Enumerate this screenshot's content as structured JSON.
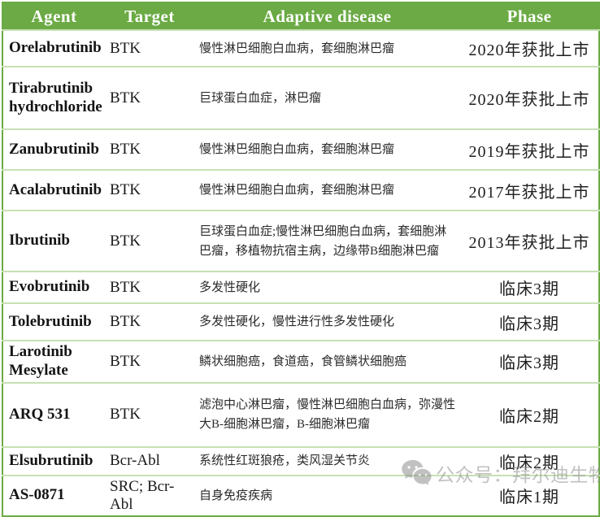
{
  "table": {
    "headers": [
      "Agent",
      "Target",
      "Adaptive disease",
      "Phase"
    ],
    "rows": [
      {
        "agent": "Orelabrutinib",
        "target": "BTK",
        "disease": "慢性淋巴细胞白血病，套细胞淋巴瘤",
        "phase": "2020年获批上市"
      },
      {
        "agent": "Tirabrutinib hydrochloride",
        "target": "BTK",
        "disease": "巨球蛋白血症，淋巴瘤",
        "phase": "2020年获批上市"
      },
      {
        "agent": "Zanubrutinib",
        "target": "BTK",
        "disease": "慢性淋巴细胞白血病，套细胞淋巴瘤",
        "phase": "2019年获批上市"
      },
      {
        "agent": "Acalabrutinib",
        "target": "BTK",
        "disease": "慢性淋巴细胞白血病，套细胞淋巴瘤",
        "phase": "2017年获批上市"
      },
      {
        "agent": "Ibrutinib",
        "target": "BTK",
        "disease": "巨球蛋白血症;慢性淋巴细胞白血病，套细胞淋巴瘤，移植物抗宿主病，边缘带B细胞淋巴瘤",
        "phase": "2013年获批上市"
      },
      {
        "agent": "Evobrutinib",
        "target": "BTK",
        "disease": "多发性硬化",
        "phase": "临床3期"
      },
      {
        "agent": "Tolebrutinib",
        "target": "BTK",
        "disease": "多发性硬化，慢性进行性多发性硬化",
        "phase": "临床3期"
      },
      {
        "agent": "Larotinib Mesylate",
        "target": "BTK",
        "disease": "鳞状细胞癌，食道癌，食管鳞状细胞癌",
        "phase": "临床3期"
      },
      {
        "agent": "ARQ 531",
        "target": "BTK",
        "disease": "滤泡中心淋巴瘤，慢性淋巴细胞白血病，弥漫性大B-细胞淋巴瘤，B-细胞淋巴瘤",
        "phase": "临床2期"
      },
      {
        "agent": "Elsubrutinib",
        "target": "Bcr-Abl",
        "disease": "系统性红斑狼疮，类风湿关节炎",
        "phase": "临床2期"
      },
      {
        "agent": "AS-0871",
        "target": "SRC; Bcr-Abl",
        "disease": "自身免疫疾病",
        "phase": "临床1期"
      }
    ]
  },
  "watermark": {
    "icon": "wechat-icon",
    "text": "公众号：拜尔迪生物"
  },
  "colors": {
    "header_bg": "#6BAA44",
    "row_line": "#C6E0B4",
    "outer_border": "#6BAA44",
    "watermark_gray": "#8F8F8F"
  }
}
